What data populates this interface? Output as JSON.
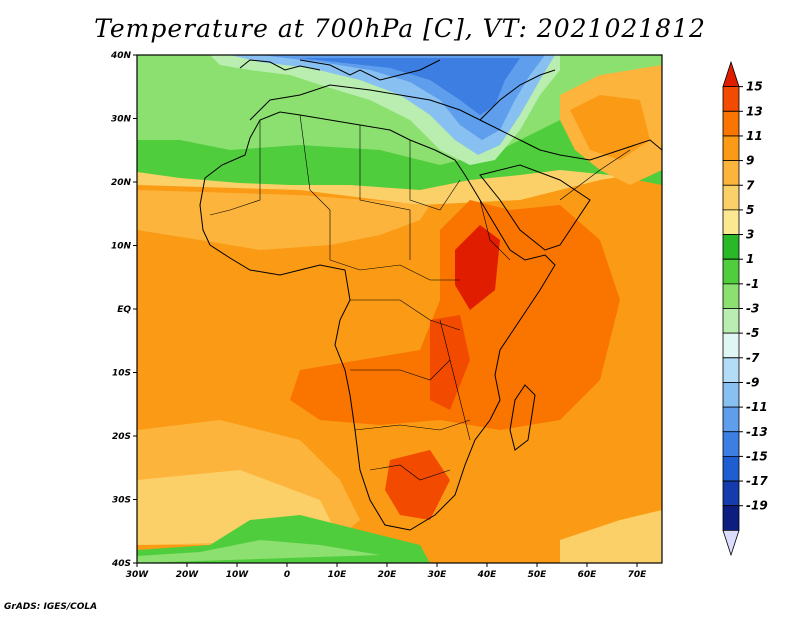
{
  "title": "Temperature at 700hPa [C], VT: 2021021812",
  "footer": "GrADS: IGES/COLA",
  "lat_labels": [
    "40N",
    "30N",
    "20N",
    "10N",
    "EQ",
    "10S",
    "20S",
    "30S",
    "40S"
  ],
  "lon_labels": [
    "30W",
    "20W",
    "10W",
    "0",
    "10E",
    "20E",
    "30E",
    "40E",
    "50E",
    "60E",
    "70E"
  ],
  "colorbar": {
    "labels": [
      "15",
      "13",
      "11",
      "9",
      "7",
      "5",
      "3",
      "1",
      "-1",
      "-3",
      "-5",
      "-7",
      "-9",
      "-11",
      "-13",
      "-15",
      "-17",
      "-19"
    ],
    "colors": [
      "#e11d00",
      "#f24b00",
      "#fa7400",
      "#fb9a14",
      "#fcb43c",
      "#fbd068",
      "#fbe890",
      "#28b828",
      "#4fcd3c",
      "#8be070",
      "#b9eeb0",
      "#dff6f4",
      "#b3dcf6",
      "#88c0f2",
      "#5e9eec",
      "#3c7ee2",
      "#1f5ed0",
      "#143cae",
      "#0c1e80",
      "#dcdcff"
    ]
  },
  "colors": {
    "land_outline": "#000000",
    "frame": "#000000"
  }
}
